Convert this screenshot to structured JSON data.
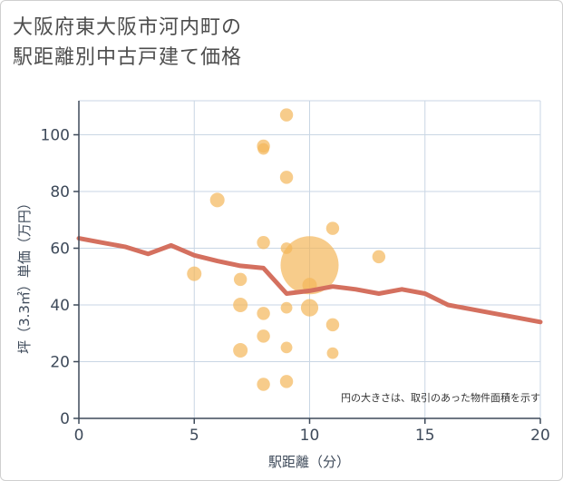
{
  "title_lines": [
    "大阪府東大阪市河内町の",
    "駅距離別中古戸建て価格"
  ],
  "chart_data": {
    "type": "scatter",
    "title": "大阪府東大阪市河内町の駅距離別中古戸建て価格",
    "xlabel": "駅距離（分）",
    "ylabel": "坪（3.3㎡）単価（万円）",
    "xlim": [
      0,
      20
    ],
    "ylim": [
      0,
      112
    ],
    "xticks": [
      0,
      5,
      10,
      15,
      20
    ],
    "yticks": [
      0,
      20,
      40,
      60,
      80,
      100
    ],
    "grid": true,
    "note": "円の大きさは、取引のあった物件面積を示す",
    "colors": {
      "points": "#f3b65a",
      "trend": "#d4705f",
      "grid": "#c9d6e4",
      "axis": "#3e4a5a"
    },
    "points": [
      {
        "x": 5,
        "y": 51,
        "size": 1.0
      },
      {
        "x": 6,
        "y": 77,
        "size": 1.0
      },
      {
        "x": 7,
        "y": 49,
        "size": 0.9
      },
      {
        "x": 7,
        "y": 40,
        "size": 1.0
      },
      {
        "x": 7,
        "y": 24,
        "size": 1.0
      },
      {
        "x": 8,
        "y": 96,
        "size": 0.9
      },
      {
        "x": 8,
        "y": 95,
        "size": 0.8
      },
      {
        "x": 8,
        "y": 62,
        "size": 0.9
      },
      {
        "x": 8,
        "y": 37,
        "size": 0.9
      },
      {
        "x": 8,
        "y": 29,
        "size": 0.9
      },
      {
        "x": 8,
        "y": 12,
        "size": 0.9
      },
      {
        "x": 9,
        "y": 107,
        "size": 0.9
      },
      {
        "x": 9,
        "y": 85,
        "size": 0.9
      },
      {
        "x": 9,
        "y": 60,
        "size": 0.8
      },
      {
        "x": 9,
        "y": 39,
        "size": 0.8
      },
      {
        "x": 9,
        "y": 25,
        "size": 0.8
      },
      {
        "x": 9,
        "y": 13,
        "size": 0.9
      },
      {
        "x": 10,
        "y": 54,
        "size": 4.0
      },
      {
        "x": 10,
        "y": 47,
        "size": 1.0
      },
      {
        "x": 10,
        "y": 39,
        "size": 1.2
      },
      {
        "x": 11,
        "y": 67,
        "size": 0.9
      },
      {
        "x": 11,
        "y": 33,
        "size": 0.9
      },
      {
        "x": 11,
        "y": 23,
        "size": 0.8
      },
      {
        "x": 13,
        "y": 57,
        "size": 0.9
      }
    ],
    "trend": {
      "x": [
        0,
        1,
        2,
        3,
        4,
        5,
        6,
        7,
        8,
        9,
        10,
        11,
        12,
        13,
        14,
        15,
        16,
        17,
        18,
        19,
        20
      ],
      "y": [
        63.5,
        62,
        60.5,
        58,
        61,
        57.5,
        55.5,
        53.8,
        53,
        44,
        45,
        46.5,
        45.5,
        44,
        45.5,
        44,
        40,
        38.5,
        37,
        35.5,
        34
      ]
    }
  }
}
